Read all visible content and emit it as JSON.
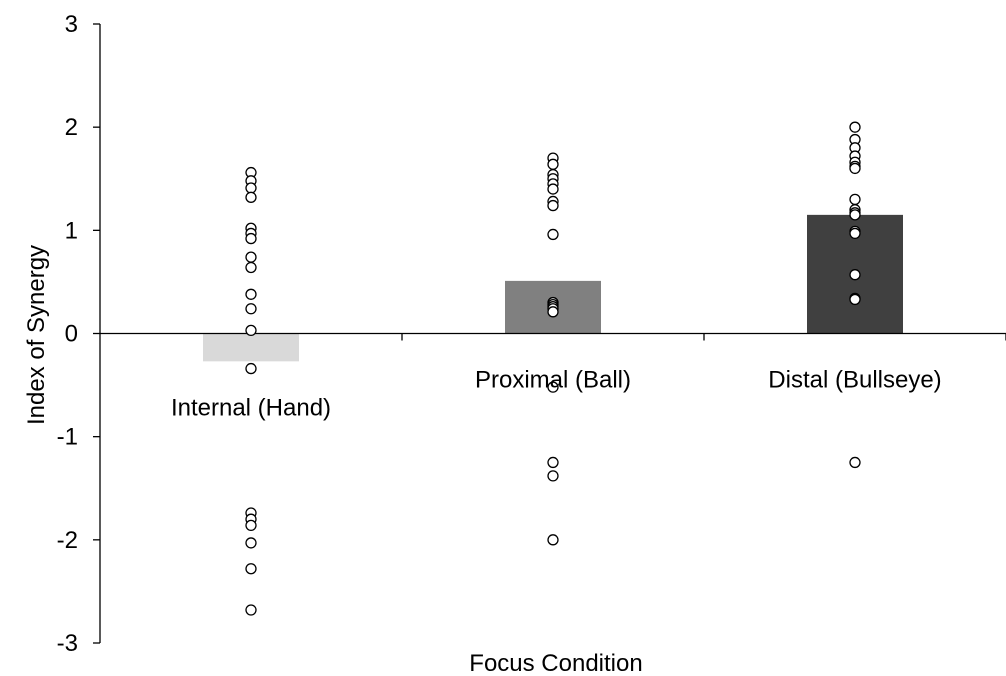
{
  "chart_data": {
    "type": "bar",
    "xlabel": "Focus Condition",
    "ylabel": "Index of Synergy",
    "ylim": [
      -3,
      3
    ],
    "yticks": [
      3,
      2,
      1,
      0,
      -1,
      -2,
      -3
    ],
    "categories": [
      "Internal (Hand)",
      "Proximal (Ball)",
      "Distal (Bullseye)"
    ],
    "values": [
      -0.27,
      0.51,
      1.15
    ],
    "bar_colors": [
      "#d9d9d9",
      "#808080",
      "#404040"
    ],
    "individual_points": [
      [
        1.56,
        1.48,
        1.41,
        1.32,
        1.02,
        0.97,
        0.92,
        0.74,
        0.64,
        0.38,
        0.24,
        0.03,
        -0.34,
        -1.74,
        -1.8,
        -1.86,
        -2.03,
        -2.28,
        -2.68
      ],
      [
        1.7,
        1.64,
        1.54,
        1.5,
        1.45,
        1.4,
        1.28,
        1.24,
        0.96,
        0.3,
        0.28,
        0.26,
        0.24,
        0.21,
        -0.52,
        -1.25,
        -1.38,
        -2.0
      ],
      [
        2.0,
        1.88,
        1.8,
        1.72,
        1.66,
        1.62,
        1.6,
        1.3,
        1.2,
        1.17,
        1.15,
        0.99,
        0.97,
        0.57,
        0.34,
        0.33,
        -1.25
      ]
    ]
  }
}
